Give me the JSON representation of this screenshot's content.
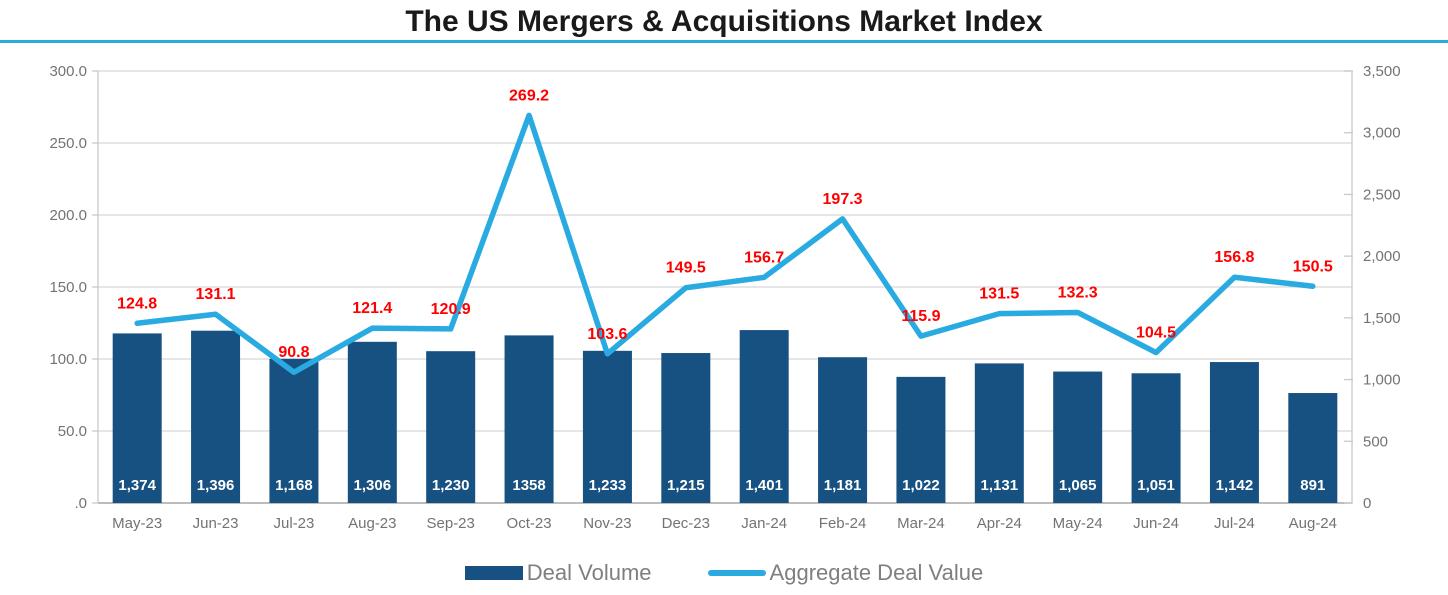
{
  "title": "The US Mergers & Acquisitions Market Index",
  "colors": {
    "accent": "#29ABE2",
    "bar": "#175181",
    "line": "#29ABE2",
    "red_label": "#FF0000",
    "bar_label": "#FFFFFF",
    "grid": "#D6D6D6",
    "axis_line": "#C9C9C9",
    "baseline": "#A6A6A6",
    "tick_text": "#737373",
    "title_text": "#1A1A1A"
  },
  "chart_data": {
    "type": "bar",
    "subtype": "combo-bar-line-dual-axis",
    "title": "The US Mergers & Acquisitions Market Index",
    "categories": [
      "May-23",
      "Jun-23",
      "Jul-23",
      "Aug-23",
      "Sep-23",
      "Oct-23",
      "Nov-23",
      "Dec-23",
      "Jan-24",
      "Feb-24",
      "Mar-24",
      "Apr-24",
      "May-24",
      "Jun-24",
      "Jul-24",
      "Aug-24"
    ],
    "series": [
      {
        "name": "Deal Volume",
        "type": "bar",
        "axis": "right",
        "values": [
          1374,
          1396,
          1168,
          1306,
          1230,
          1358,
          1233,
          1215,
          1401,
          1181,
          1022,
          1131,
          1065,
          1051,
          1142,
          891
        ],
        "labels": [
          "1,374",
          "1,396",
          "1,168",
          "1,306",
          "1,230",
          "1358",
          "1,233",
          "1,215",
          "1,401",
          "1,181",
          "1,022",
          "1,131",
          "1,065",
          "1,051",
          "1,142",
          "891"
        ]
      },
      {
        "name": "Aggregate Deal Value",
        "type": "line",
        "axis": "left",
        "values": [
          124.8,
          131.1,
          90.8,
          121.4,
          120.9,
          269.2,
          103.6,
          149.5,
          156.7,
          197.3,
          115.9,
          131.5,
          132.3,
          104.5,
          156.8,
          150.5
        ],
        "labels": [
          "124.8",
          "131.1",
          "90.8",
          "121.4",
          "120.9",
          "269.2",
          "103.6",
          "149.5",
          "156.7",
          "197.3",
          "115.9",
          "131.5",
          "132.3",
          "104.5",
          "156.8",
          "150.5"
        ]
      }
    ],
    "left_axis": {
      "min": 0,
      "max": 300,
      "ticks": [
        "300.0",
        "250.0",
        "200.0",
        "150.0",
        "100.0",
        "50.0",
        ".0"
      ]
    },
    "right_axis": {
      "min": 0,
      "max": 3500,
      "ticks": [
        "3,500",
        "3,000",
        "2,500",
        "2,000",
        "1,500",
        "1,000",
        "500",
        "0"
      ]
    },
    "grid": true,
    "legend_position": "bottom"
  },
  "legend": {
    "items": [
      {
        "label": "Deal Volume",
        "swatch": "bar"
      },
      {
        "label": "Aggregate Deal Value",
        "swatch": "line"
      }
    ]
  }
}
